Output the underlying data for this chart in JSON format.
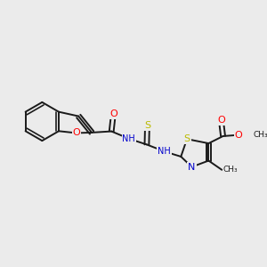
{
  "bg_color": "#ebebeb",
  "bond_color": "#1a1a1a",
  "bond_width": 1.4,
  "atom_colors": {
    "O": "#ff0000",
    "N": "#0000cc",
    "S": "#bbbb00",
    "C": "#1a1a1a",
    "H": "#606060"
  },
  "font_size": 7.5,
  "fig_size": [
    3.0,
    3.0
  ],
  "dpi": 100,
  "xlim": [
    0,
    10
  ],
  "ylim": [
    0,
    10
  ]
}
